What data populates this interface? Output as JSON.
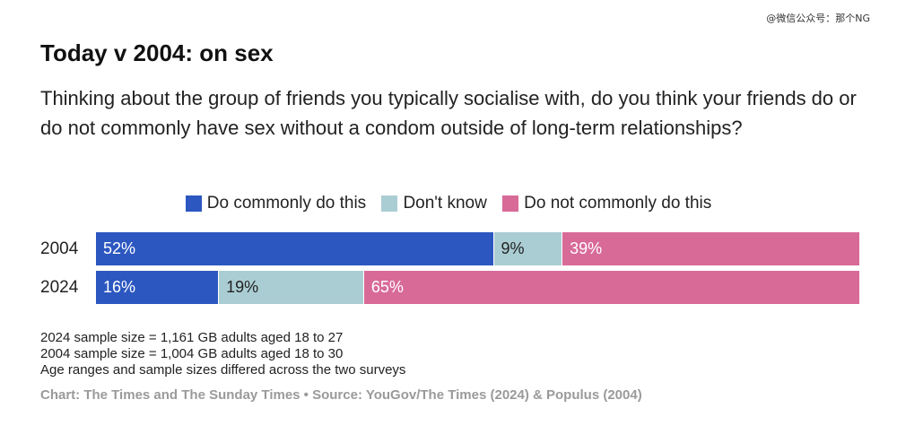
{
  "watermark": "@微信公众号：那个NG",
  "chart_data": {
    "type": "bar",
    "orientation": "horizontal",
    "stacked": true,
    "percent": true,
    "title": "Today v 2004: on sex",
    "subtitle": "Thinking about the group of friends you typically socialise with, do you think your friends do or do not commonly have sex without a condom outside of long-term relationships?",
    "categories": [
      "2004",
      "2024"
    ],
    "series": [
      {
        "name": "Do commonly do this",
        "color": "#2c57c0",
        "text_color": "#ffffff",
        "values": [
          52,
          16
        ],
        "labels": [
          "52%",
          "16%"
        ]
      },
      {
        "name": "Don't know",
        "color": "#aacdd3",
        "text_color": "#222222",
        "values": [
          9,
          19
        ],
        "labels": [
          "9%",
          "19%"
        ]
      },
      {
        "name": "Do not commonly do this",
        "color": "#d86a98",
        "text_color": "#ffffff",
        "values": [
          39,
          65
        ],
        "labels": [
          "39%",
          "65%"
        ]
      }
    ],
    "legend_position": "top-center",
    "grid": false,
    "xlim": [
      0,
      100
    ]
  },
  "notes": [
    "2024 sample size = 1,161 GB adults aged 18 to 27",
    "2004 sample size = 1,004 GB adults aged 18 to 30",
    "Age ranges and sample sizes differed across the two surveys"
  ],
  "source": "Chart: The Times and The Sunday Times • Source: YouGov/The Times (2024) & Populus (2004)"
}
